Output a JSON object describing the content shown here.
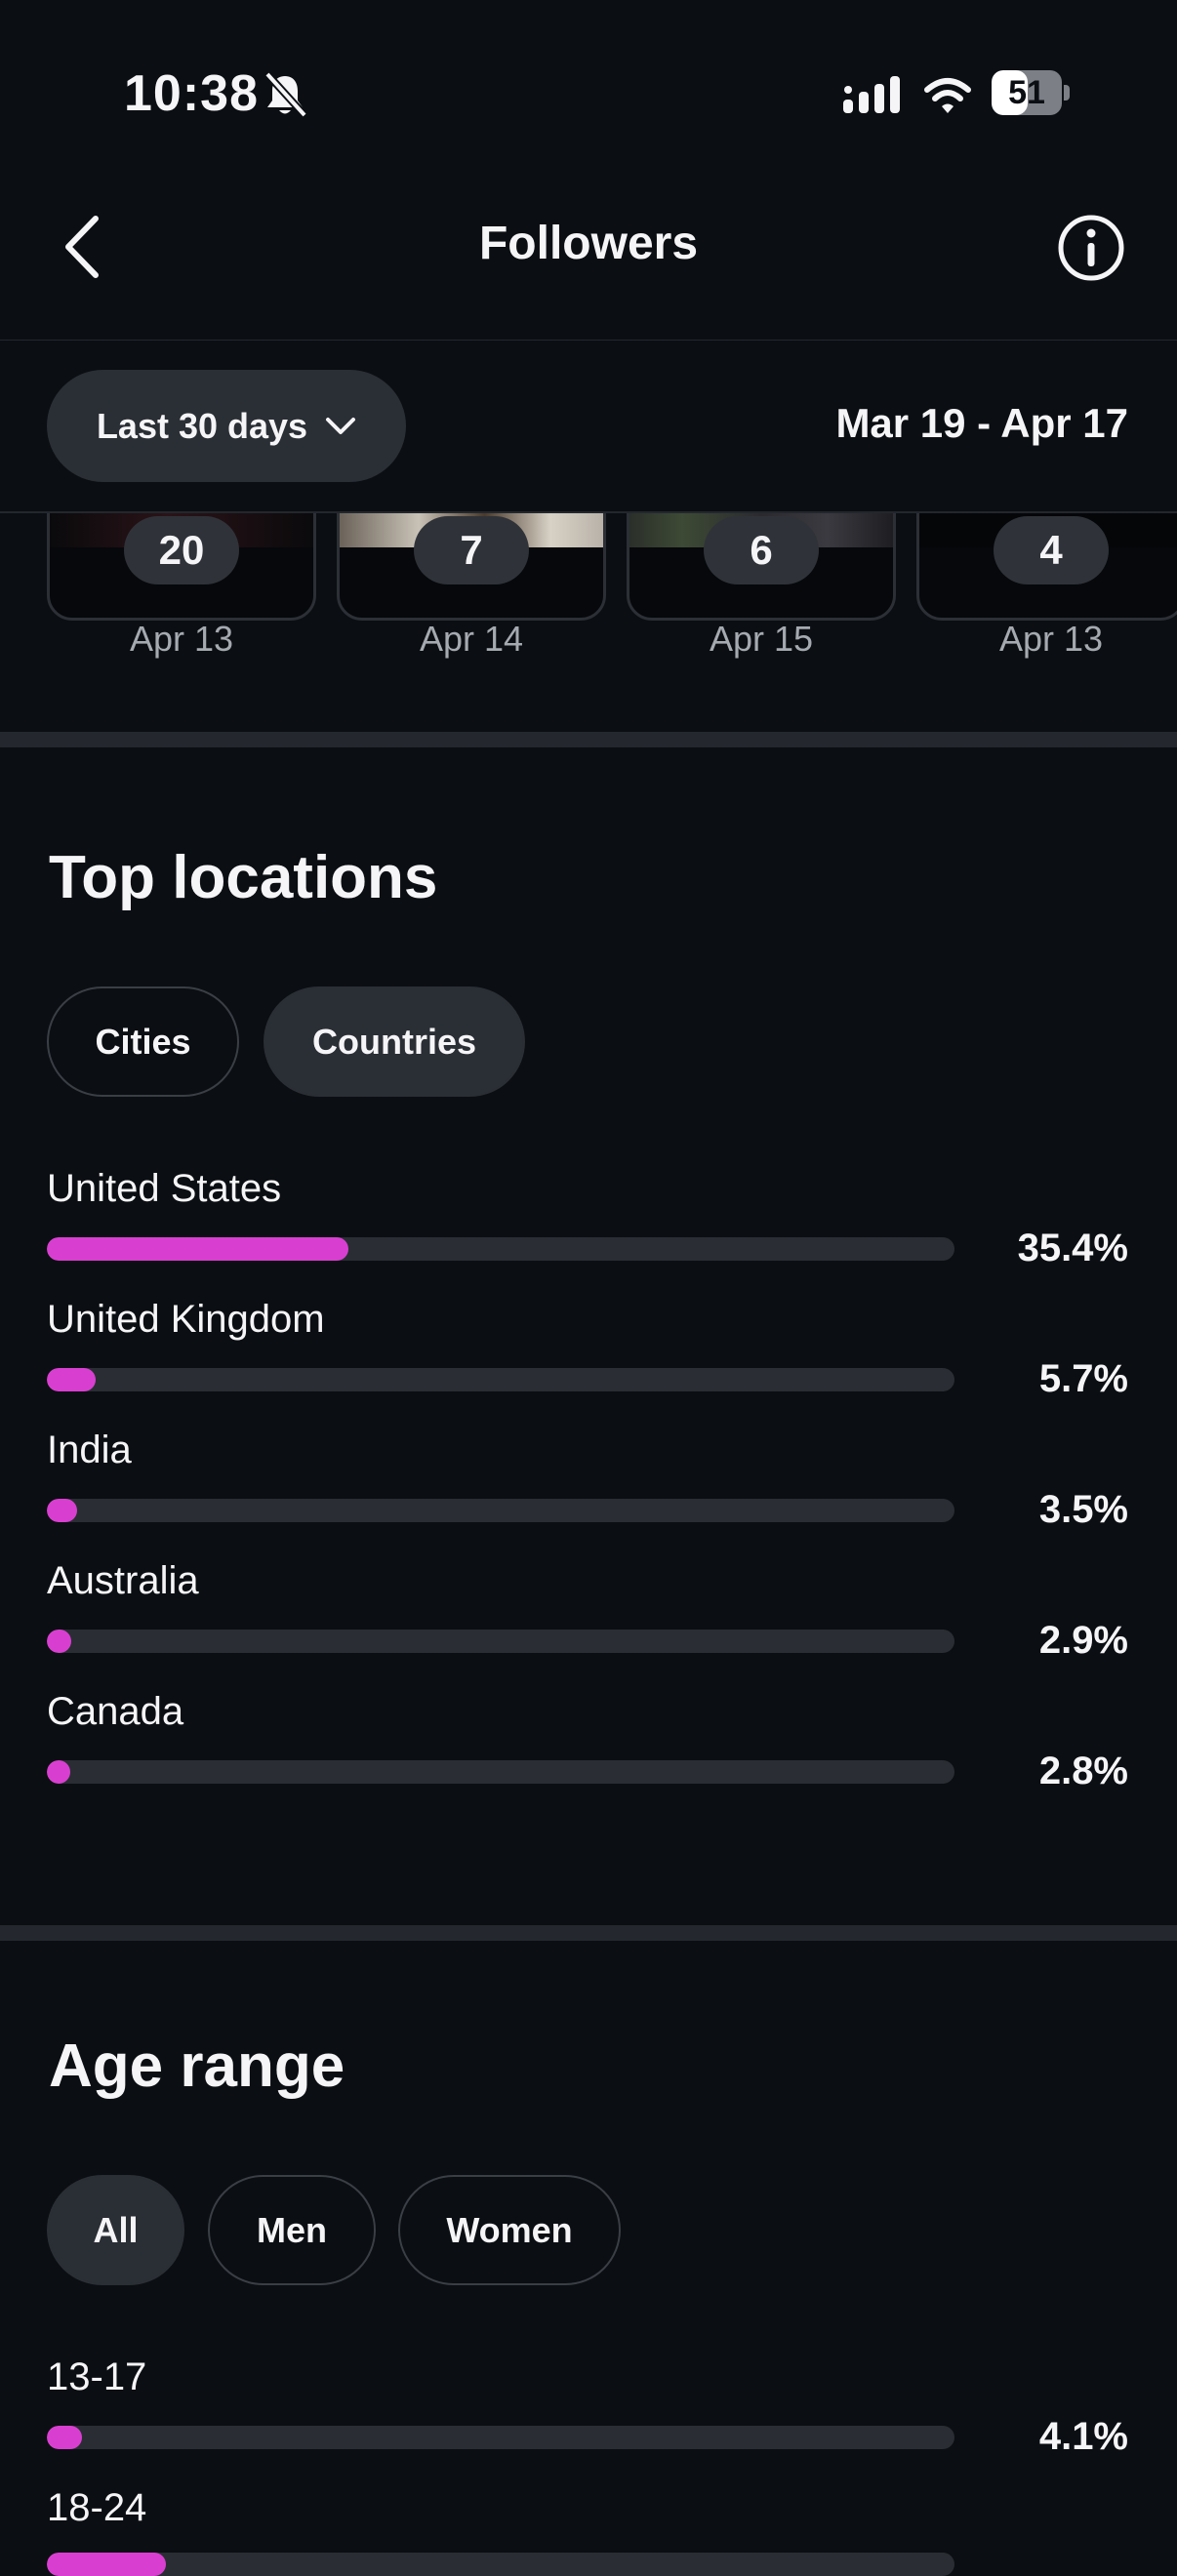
{
  "status_bar": {
    "time": "10:38",
    "battery": "51"
  },
  "nav": {
    "title": "Followers"
  },
  "filter": {
    "range_label": "Last 30 days",
    "date_range": "Mar 19 - Apr 17"
  },
  "thumbnails": [
    {
      "count": "20",
      "date": "Apr 13"
    },
    {
      "count": "7",
      "date": "Apr 14"
    },
    {
      "count": "6",
      "date": "Apr 15"
    },
    {
      "count": "4",
      "date": "Apr 13"
    }
  ],
  "top_locations": {
    "title": "Top locations",
    "tabs": [
      "Cities",
      "Countries"
    ],
    "active_tab": "Countries",
    "rows": [
      {
        "label": "United States",
        "percent": "35.4%",
        "value": 35.4
      },
      {
        "label": "United Kingdom",
        "percent": "5.7%",
        "value": 5.7
      },
      {
        "label": "India",
        "percent": "3.5%",
        "value": 3.5
      },
      {
        "label": "Australia",
        "percent": "2.9%",
        "value": 2.9
      },
      {
        "label": "Canada",
        "percent": "2.8%",
        "value": 2.8
      }
    ]
  },
  "age_range": {
    "title": "Age range",
    "tabs": [
      "All",
      "Men",
      "Women"
    ],
    "active_tab": "All",
    "rows": [
      {
        "label": "13-17",
        "percent": "4.1%",
        "value": 4.1
      },
      {
        "label": "18-24",
        "percent": "",
        "value": 14
      }
    ]
  },
  "colors": {
    "accent": "#d83fd0",
    "background": "#0b0e12",
    "track": "#2a2d33",
    "pill": "#2a2e35"
  }
}
